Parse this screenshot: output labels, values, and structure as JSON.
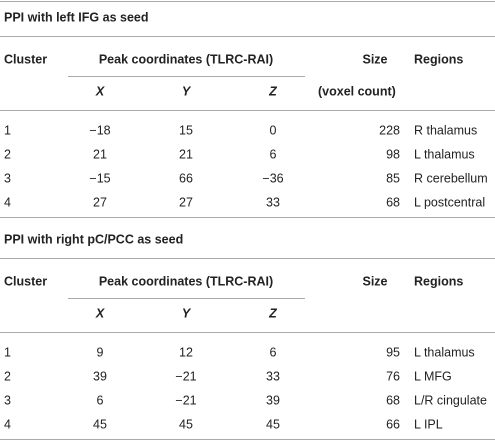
{
  "sections": [
    {
      "title": "PPI with left IFG as seed",
      "header": {
        "cluster": "Cluster",
        "peak": "Peak coordinates (TLRC-RAI)",
        "size": "Size",
        "regions": "Regions",
        "x": "X",
        "y": "Y",
        "z": "Z",
        "size_unit": "(voxel count)"
      },
      "rows": [
        [
          "1",
          "−18",
          "15",
          "0",
          "228",
          "R thalamus"
        ],
        [
          "2",
          "21",
          "21",
          "6",
          "98",
          "L thalamus"
        ],
        [
          "3",
          "−15",
          "66",
          "−36",
          "85",
          "R cerebellum"
        ],
        [
          "4",
          "27",
          "27",
          "33",
          "68",
          "L postcentral"
        ]
      ]
    },
    {
      "title": "PPI with right pC/PCC as seed",
      "header": {
        "cluster": "Cluster",
        "peak": "Peak coordinates (TLRC-RAI)",
        "size": "Size",
        "regions": "Regions",
        "x": "X",
        "y": "Y",
        "z": "Z"
      },
      "rows": [
        [
          "1",
          "9",
          "12",
          "6",
          "95",
          "L thalamus"
        ],
        [
          "2",
          "39",
          "−21",
          "33",
          "76",
          "L MFG"
        ],
        [
          "3",
          "6",
          "−21",
          "39",
          "68",
          "L/R cingulate"
        ],
        [
          "4",
          "45",
          "45",
          "45",
          "66",
          "L IPL"
        ]
      ]
    }
  ]
}
